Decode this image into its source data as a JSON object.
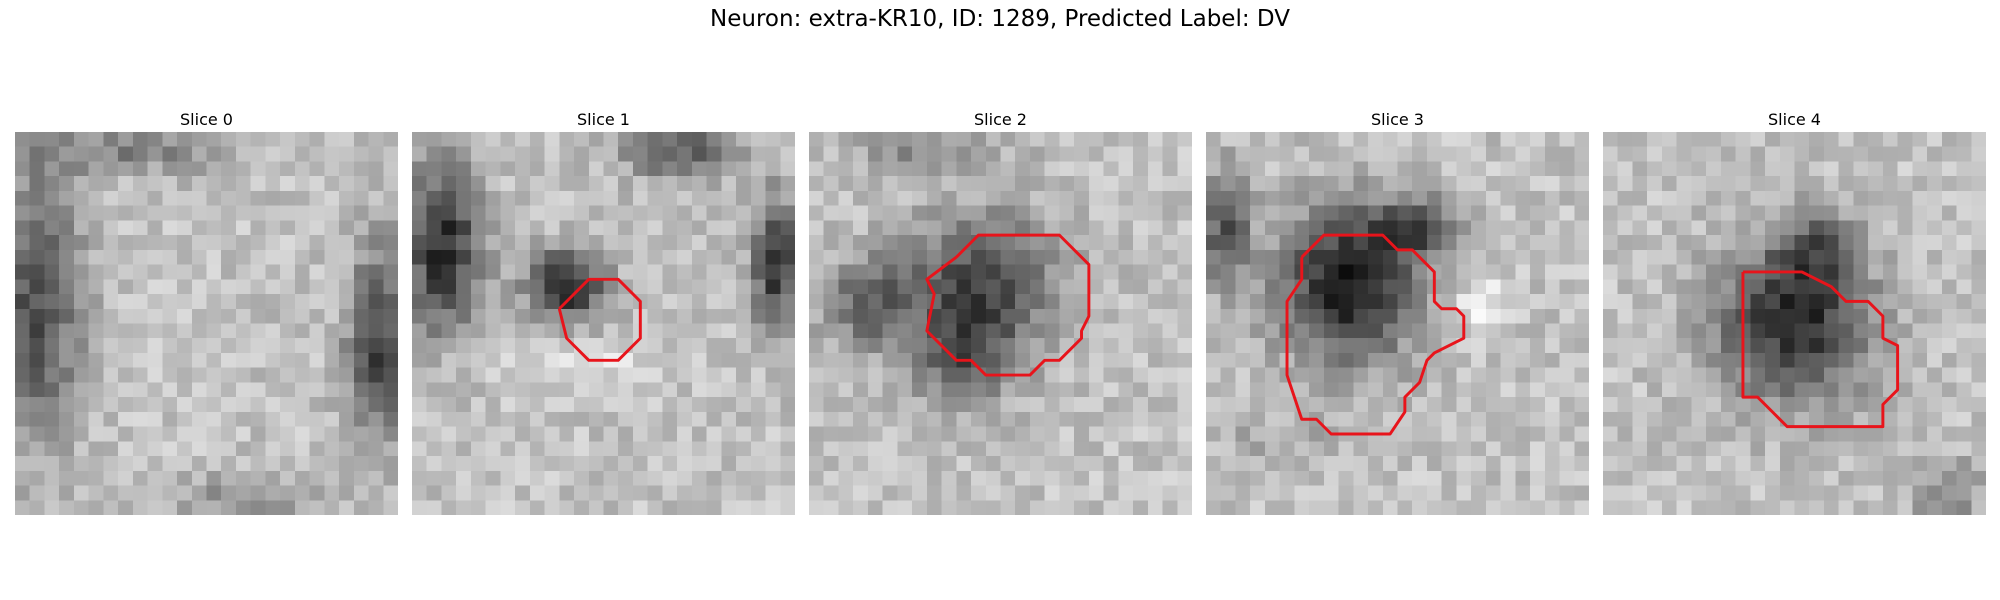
{
  "figure": {
    "title": "Neuron: extra-KR10, ID: 1289, Predicted Label: DV",
    "slices": [
      {
        "label": "Slice 0",
        "seed": 11,
        "blobs": [
          [
            0.05,
            0.45,
            0.12,
            0.35,
            0.45
          ],
          [
            0.95,
            0.55,
            0.08,
            0.25,
            0.5
          ],
          [
            0.3,
            0.05,
            0.25,
            0.06,
            0.25
          ],
          [
            0.6,
            0.95,
            0.2,
            0.06,
            0.2
          ]
        ],
        "contour": []
      },
      {
        "label": "Slice 1",
        "seed": 23,
        "blobs": [
          [
            0.4,
            0.4,
            0.1,
            0.09,
            0.65
          ],
          [
            0.08,
            0.3,
            0.1,
            0.22,
            0.6
          ],
          [
            0.95,
            0.35,
            0.06,
            0.18,
            0.55
          ],
          [
            0.7,
            0.05,
            0.15,
            0.07,
            0.4
          ],
          [
            0.4,
            0.6,
            0.3,
            0.05,
            -0.12
          ]
        ],
        "contour": [
          [
            10,
            12
          ],
          [
            12,
            10
          ],
          [
            14,
            10
          ],
          [
            15.5,
            11.5
          ],
          [
            15.5,
            14
          ],
          [
            14,
            15.5
          ],
          [
            12,
            15.5
          ],
          [
            10.5,
            14
          ],
          [
            10,
            12
          ]
        ]
      },
      {
        "label": "Slice 2",
        "seed": 37,
        "blobs": [
          [
            0.45,
            0.4,
            0.2,
            0.18,
            0.5
          ],
          [
            0.15,
            0.45,
            0.12,
            0.12,
            0.35
          ],
          [
            0.4,
            0.6,
            0.12,
            0.12,
            0.35
          ],
          [
            0.3,
            0.05,
            0.2,
            0.05,
            0.2
          ]
        ],
        "contour": [
          [
            10,
            8.5
          ],
          [
            11.5,
            7
          ],
          [
            17,
            7
          ],
          [
            19,
            9
          ],
          [
            19,
            12.5
          ],
          [
            18.5,
            13.5
          ],
          [
            18.5,
            14
          ],
          [
            17,
            15.5
          ],
          [
            16,
            15.5
          ],
          [
            15,
            16.5
          ],
          [
            12,
            16.5
          ],
          [
            11,
            15.5
          ],
          [
            10,
            15.5
          ],
          [
            8,
            13.5
          ],
          [
            8.5,
            11
          ],
          [
            8,
            10
          ],
          [
            10,
            8.5
          ]
        ]
      },
      {
        "label": "Slice 3",
        "seed": 41,
        "blobs": [
          [
            0.37,
            0.4,
            0.18,
            0.2,
            0.65
          ],
          [
            0.55,
            0.25,
            0.12,
            0.08,
            0.4
          ],
          [
            0.05,
            0.25,
            0.06,
            0.15,
            0.45
          ],
          [
            0.72,
            0.45,
            0.06,
            0.08,
            -0.2
          ],
          [
            0.2,
            0.8,
            0.2,
            0.06,
            0.1
          ]
        ],
        "contour": [
          [
            6.5,
            8.5
          ],
          [
            8,
            7
          ],
          [
            12,
            7
          ],
          [
            13,
            8
          ],
          [
            14,
            8
          ],
          [
            15.5,
            9.5
          ],
          [
            15.5,
            11.5
          ],
          [
            16,
            12
          ],
          [
            17,
            12
          ],
          [
            17.5,
            12.5
          ],
          [
            17.5,
            14
          ],
          [
            16.5,
            14.5
          ],
          [
            15.5,
            15
          ],
          [
            15,
            15.5
          ],
          [
            14.5,
            17
          ],
          [
            13.5,
            18
          ],
          [
            13.5,
            19
          ],
          [
            12.5,
            20.5
          ],
          [
            8.5,
            20.5
          ],
          [
            7.5,
            19.5
          ],
          [
            6.5,
            19.5
          ],
          [
            5.5,
            16.5
          ],
          [
            5.5,
            11.5
          ],
          [
            6.5,
            10
          ],
          [
            6.5,
            8.5
          ]
        ]
      },
      {
        "label": "Slice 4",
        "seed": 53,
        "blobs": [
          [
            0.5,
            0.5,
            0.2,
            0.2,
            0.6
          ],
          [
            0.55,
            0.3,
            0.1,
            0.1,
            0.3
          ],
          [
            0.9,
            0.95,
            0.1,
            0.1,
            0.2
          ]
        ],
        "contour": [
          [
            9.5,
            9.5
          ],
          [
            13.5,
            9.5
          ],
          [
            14.5,
            10
          ],
          [
            15.5,
            10.5
          ],
          [
            16.5,
            11.5
          ],
          [
            18,
            11.5
          ],
          [
            19,
            12.5
          ],
          [
            19,
            14
          ],
          [
            20,
            14.5
          ],
          [
            20,
            17.5
          ],
          [
            19,
            18.5
          ],
          [
            19,
            20
          ],
          [
            12.5,
            20
          ],
          [
            11.5,
            19
          ],
          [
            10.5,
            18
          ],
          [
            9.5,
            18
          ],
          [
            9.5,
            9.5
          ]
        ]
      }
    ]
  }
}
